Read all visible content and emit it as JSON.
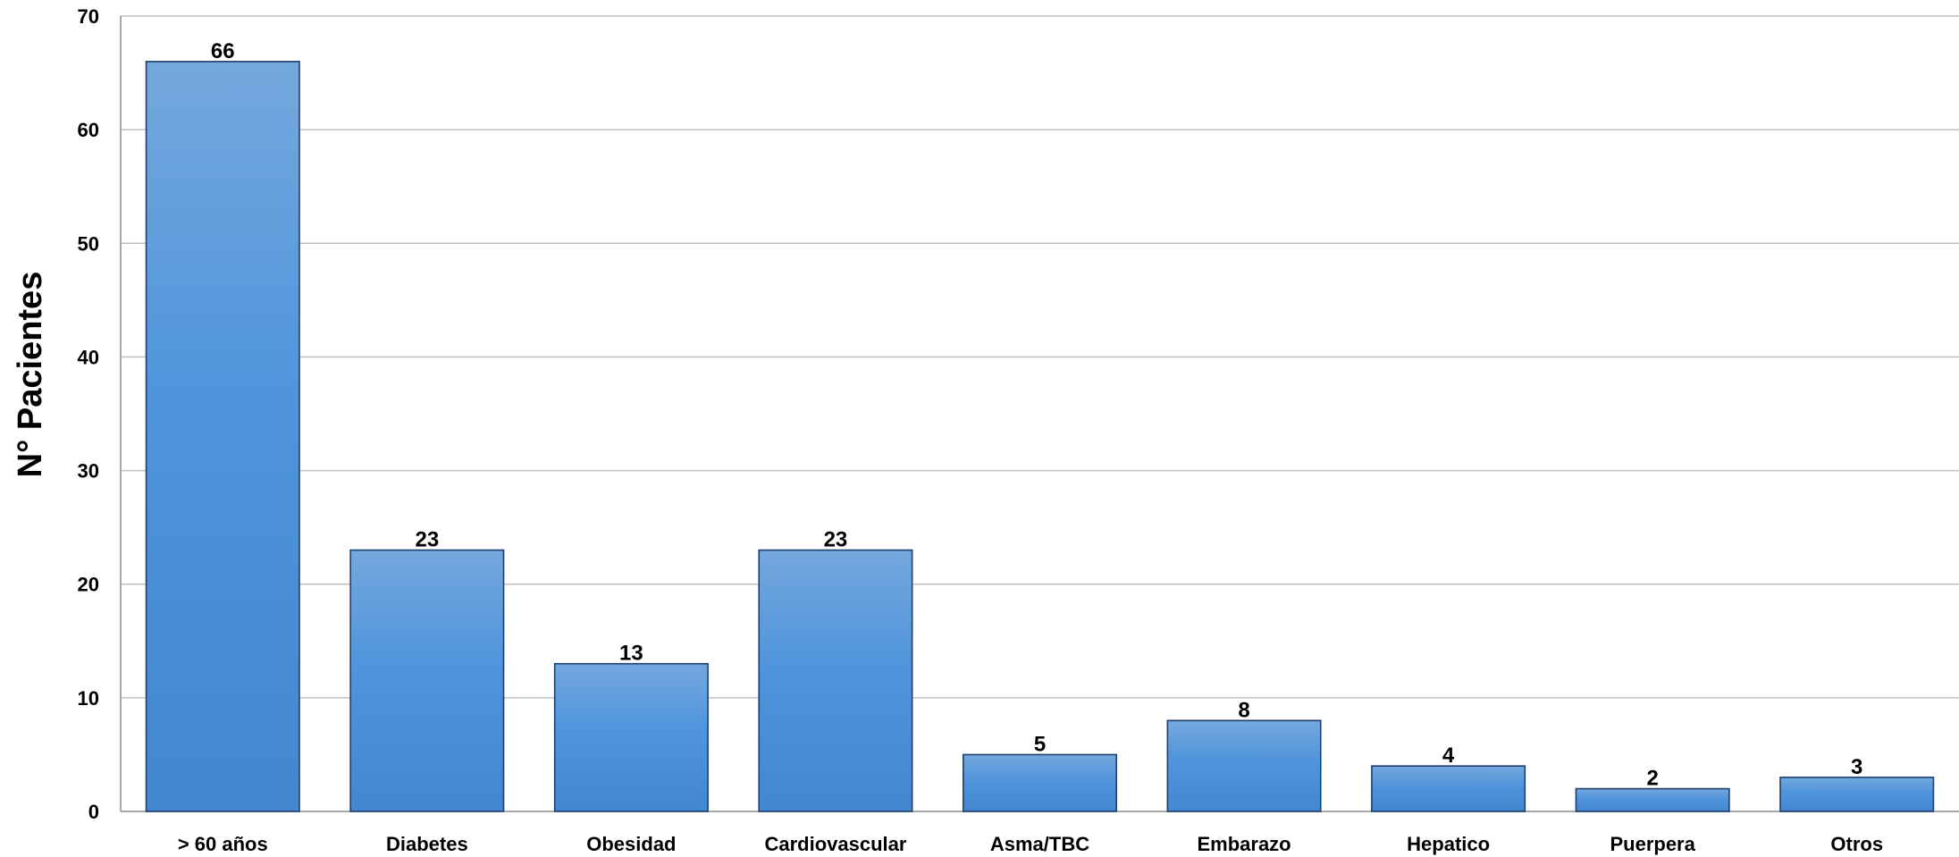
{
  "chart_data": {
    "type": "bar",
    "title": "",
    "xlabel": "",
    "ylabel": "N° Pacientes",
    "categories": [
      "> 60 años",
      "Diabetes",
      "Obesidad",
      "Cardiovascular",
      "Asma/TBC",
      "Embarazo",
      "Hepatico",
      "Puerpera",
      "Otros"
    ],
    "values": [
      66,
      23,
      13,
      23,
      5,
      8,
      4,
      2,
      3
    ],
    "ylim": [
      0,
      70
    ],
    "yticks": [
      0,
      10,
      20,
      30,
      40,
      50,
      60,
      70
    ],
    "grid": true,
    "legend": "none",
    "bar_color": "#4f94dc",
    "bar_color_light": "#74a8dd",
    "bar_color_dark": "#4287cf",
    "bar_outline_color": "#1f3f6e"
  }
}
